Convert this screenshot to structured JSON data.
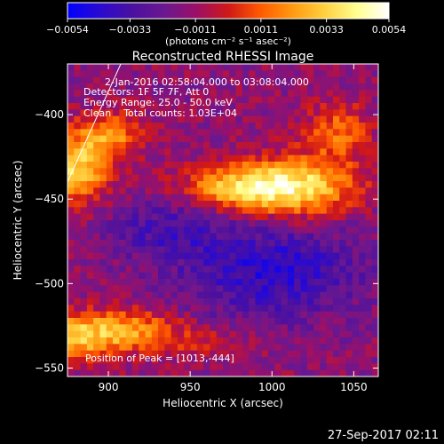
{
  "chart_data": {
    "type": "heatmap",
    "title": "Reconstructed RHESSI Image",
    "xlabel": "Heliocentric X (arcsec)",
    "ylabel": "Heliocentric Y (arcsec)",
    "xlim": [
      875,
      1065
    ],
    "ylim": [
      -555,
      -370
    ],
    "x_ticks": [
      900,
      950,
      1000,
      1050
    ],
    "y_ticks": [
      -400,
      -450,
      -500,
      -550
    ],
    "x_tick_labels": [
      "900",
      "950",
      "1000",
      "1050"
    ],
    "y_tick_labels": [
      "−400",
      "−450",
      "−500",
      "−550"
    ],
    "colorbar": {
      "min": -0.0054,
      "max": 0.0054,
      "ticks": [
        -0.0054,
        -0.0033,
        -0.0011,
        0.0011,
        0.0033,
        0.0054
      ],
      "tick_labels": [
        "−0.0054",
        "−0.0033",
        "−0.0011",
        "0.0011",
        "0.0033",
        "0.0054"
      ],
      "units": "(photons cm⁻² s⁻¹ asec⁻²)",
      "colormap": [
        "#0000ff",
        "#2a0ad0",
        "#4a10a0",
        "#6a1890",
        "#9a1068",
        "#d01818",
        "#ff5a00",
        "#ff9a10",
        "#ffd040",
        "#ffff90",
        "#ffffff"
      ]
    },
    "info_lines": [
      "2-Jan-2016 02:58:04.000 to 03:08:04.000",
      "Detectors: 1F 5F 7F, Att 0",
      "Energy Range: 25.0 - 50.0 keV",
      "Clean    Total counts: 1.03E+04"
    ],
    "peak_label": "Position of Peak = [1013,-444]",
    "peak": [
      1013,
      -444
    ],
    "sources": [
      {
        "x": 1013,
        "y": -443,
        "sx": 26,
        "sy": 12,
        "amp": 0.0054
      },
      {
        "x": 975,
        "y": -443,
        "sx": 22,
        "sy": 9,
        "amp": 0.0032
      },
      {
        "x": 1040,
        "y": -410,
        "sx": 14,
        "sy": 12,
        "amp": 0.0026
      },
      {
        "x": 880,
        "y": -432,
        "sx": 14,
        "sy": 14,
        "amp": 0.0046
      },
      {
        "x": 902,
        "y": -412,
        "sx": 14,
        "sy": 10,
        "amp": 0.003
      },
      {
        "x": 872,
        "y": -532,
        "sx": 26,
        "sy": 10,
        "amp": 0.0043
      },
      {
        "x": 915,
        "y": -527,
        "sx": 22,
        "sy": 8,
        "amp": 0.0028
      },
      {
        "x": 960,
        "y": -535,
        "sx": 20,
        "sy": 6,
        "amp": 0.0012
      },
      {
        "x": 1000,
        "y": -492,
        "sx": 40,
        "sy": 20,
        "amp": -0.0028
      },
      {
        "x": 935,
        "y": -468,
        "sx": 25,
        "sy": 12,
        "amp": -0.0018
      }
    ],
    "grid": false,
    "legend": "none"
  },
  "footer": {
    "timestamp": "27-Sep-2017 02:11"
  }
}
